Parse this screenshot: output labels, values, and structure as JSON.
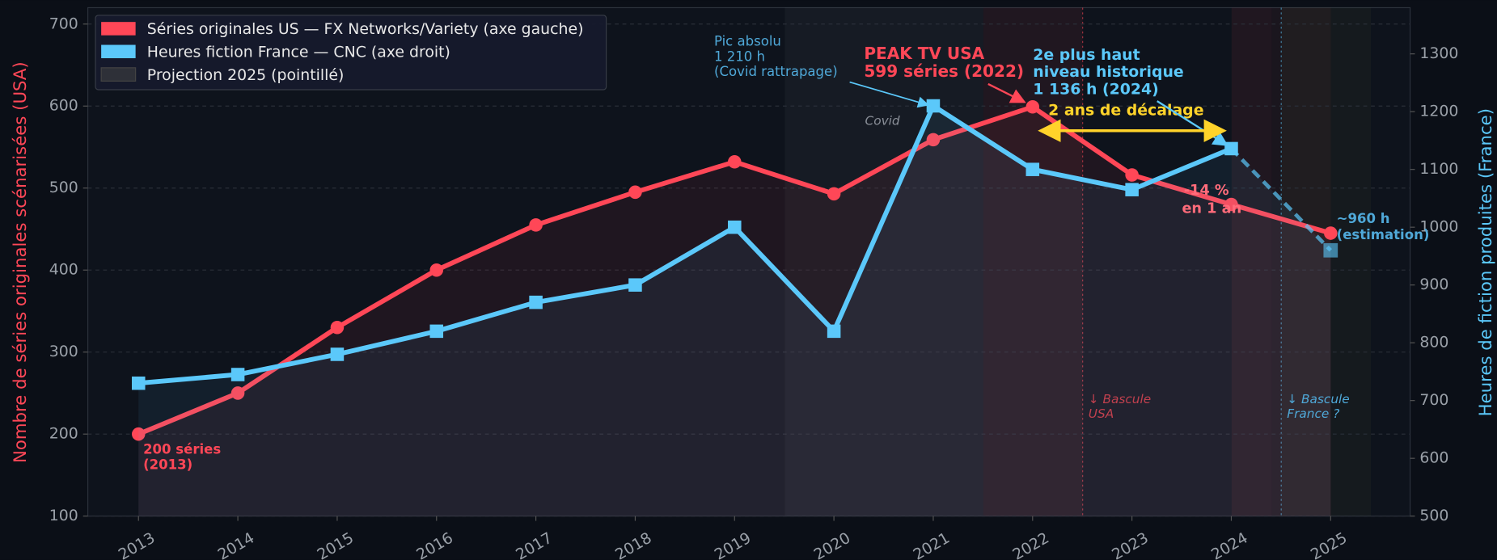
{
  "chart_data": {
    "type": "line",
    "x": [
      2013,
      2014,
      2015,
      2016,
      2017,
      2018,
      2019,
      2020,
      2021,
      2022,
      2023,
      2024,
      2025
    ],
    "xlim": [
      2012.49,
      2025.8
    ],
    "xticks": [
      2013,
      2014,
      2015,
      2016,
      2017,
      2018,
      2019,
      2020,
      2021,
      2022,
      2023,
      2024,
      2025
    ],
    "ylim": [
      100,
      720
    ],
    "yticks": [
      100,
      200,
      300,
      400,
      500,
      600,
      700
    ],
    "y2lim": [
      500,
      1380
    ],
    "y2ticks": [
      500,
      600,
      700,
      800,
      900,
      1000,
      1100,
      1200,
      1300
    ],
    "ylabel": "Nombre de séries originales scénarisées (USA)",
    "y2label": "Heures de fiction produites (France)",
    "grid": true,
    "legend": "upper left",
    "series": [
      {
        "name": "Séries originales US — FX Networks/Variety (axe gauche)",
        "color": "#ff4757",
        "marker": "circle",
        "values": [
          200,
          250,
          330,
          400,
          455,
          495,
          532,
          493,
          559,
          599,
          516,
          480,
          445
        ]
      },
      {
        "name": "Heures fiction France — CNC (axe droit)",
        "color": "#5bc8fa",
        "marker": "square",
        "axis": "y2",
        "last_segment": "dashed",
        "values": [
          730,
          745,
          780,
          820,
          870,
          900,
          1000,
          820,
          1210,
          1100,
          1065,
          1136,
          960
        ]
      }
    ],
    "projection_label": "Projection 2025 (pointillé)",
    "annotations": [
      {
        "text": [
          "200 séries",
          "(2013)"
        ]
      },
      {
        "text": [
          "PEAK TV USA",
          "599 séries (2022)"
        ]
      },
      {
        "text": [
          "Pic absolu",
          "1 210 h",
          "(Covid rattrapage)"
        ]
      },
      {
        "text": [
          "2e plus haut",
          "niveau historique",
          "1 136 h (2024)"
        ]
      },
      {
        "text": [
          "2 ans de décalage"
        ]
      },
      {
        "text": [
          "Covid"
        ]
      },
      {
        "text": [
          "-14 %",
          "en 1 an"
        ]
      },
      {
        "text": [
          "~960 h",
          "(estimation)"
        ]
      },
      {
        "text": [
          "↓ Bascule",
          "USA"
        ]
      },
      {
        "text": [
          "↓ Bascule",
          "France ?"
        ]
      }
    ]
  }
}
